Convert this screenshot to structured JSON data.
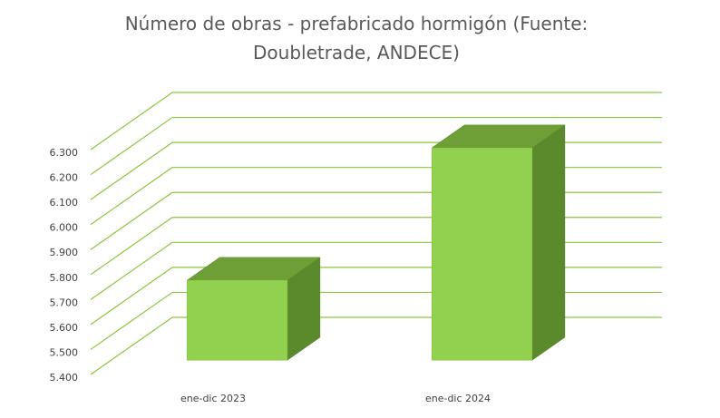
{
  "chart_data": {
    "type": "bar3d",
    "title": "Número de obras - prefabricado hormigón (Fuente: Doubletrade, ANDECE)",
    "categories": [
      "ene-dic 2023",
      "ene-dic 2024"
    ],
    "values": [
      5720,
      6250
    ],
    "color": "#92d050",
    "ylim": [
      5400,
      6300
    ],
    "yticks": [
      {
        "value": 5400,
        "label": "5.400"
      },
      {
        "value": 5500,
        "label": "5.500"
      },
      {
        "value": 5600,
        "label": "5.600"
      },
      {
        "value": 5700,
        "label": "5.700"
      },
      {
        "value": 5800,
        "label": "5.800"
      },
      {
        "value": 5900,
        "label": "5.900"
      },
      {
        "value": 6000,
        "label": "6.000"
      },
      {
        "value": 6100,
        "label": "6.100"
      },
      {
        "value": 6200,
        "label": "6.200"
      },
      {
        "value": 6300,
        "label": "6.300"
      }
    ],
    "grid": true
  }
}
